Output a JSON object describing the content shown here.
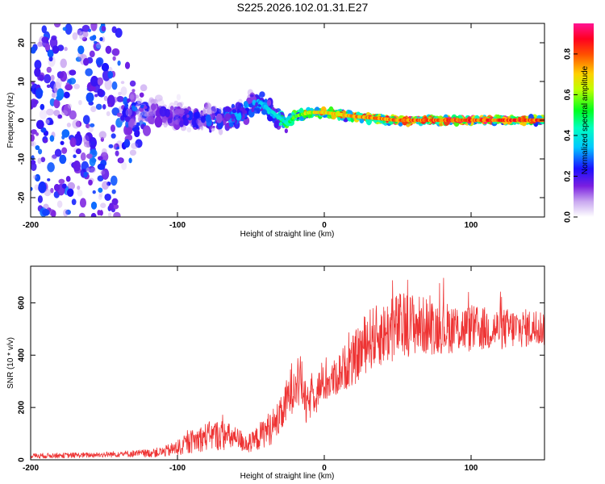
{
  "title": "S225.2026.102.01.31.E27",
  "chart_data": [
    {
      "type": "heatmap",
      "title": "",
      "xlabel": "Height of straight line (km)",
      "ylabel": "Frequency (Hz)",
      "xlim": [
        -200,
        150
      ],
      "ylim": [
        -25,
        25
      ],
      "xticks": [
        -200,
        -100,
        0,
        100
      ],
      "yticks": [
        -20,
        -10,
        0,
        10,
        20
      ],
      "grid": false,
      "colorbar": {
        "label": "Normalized spectral amplitude",
        "range": [
          0,
          0.95
        ],
        "ticks": [
          "0.0",
          "0.2",
          "0.4",
          "0.6",
          "0.8"
        ],
        "colors": [
          "#ffffff",
          "#8a2be2",
          "#0000ff",
          "#00ffff",
          "#00ff00",
          "#ffff00",
          "#ff8000",
          "#ff0000",
          "#ff1493"
        ]
      },
      "frequency_profile": {
        "description_x": [
          -200,
          -140,
          -120,
          -100,
          -80,
          -60,
          -45,
          -35,
          -25,
          -20,
          -10,
          0,
          20,
          50,
          100,
          150
        ],
        "center_hz": [
          0,
          0,
          2,
          1,
          0,
          1,
          5,
          2,
          -1,
          1,
          2,
          2,
          1,
          0,
          0,
          0
        ],
        "spread_hz": [
          25,
          25,
          6,
          5,
          5,
          5,
          4,
          4,
          3,
          2,
          1.5,
          1.5,
          1.2,
          1,
          1,
          1
        ],
        "peak_amplitude": [
          0.15,
          0.15,
          0.15,
          0.2,
          0.25,
          0.3,
          0.35,
          0.4,
          0.5,
          0.6,
          0.7,
          0.75,
          0.8,
          0.85,
          0.9,
          0.9
        ]
      }
    },
    {
      "type": "line",
      "title": "",
      "xlabel": "Height of straight line (km)",
      "ylabel": "SNR (10 * v/v)",
      "xlim": [
        -200,
        150
      ],
      "ylim": [
        0,
        740
      ],
      "xticks": [
        -200,
        -100,
        0,
        100
      ],
      "yticks": [
        0,
        200,
        400,
        600
      ],
      "grid": false,
      "series": [
        {
          "name": "SNR",
          "color": "#ee3333",
          "x": [
            -200,
            -160,
            -140,
            -120,
            -110,
            -100,
            -90,
            -80,
            -70,
            -60,
            -50,
            -45,
            -40,
            -35,
            -30,
            -25,
            -20,
            -15,
            -12,
            -10,
            -5,
            0,
            5,
            10,
            15,
            20,
            25,
            30,
            40,
            50,
            60,
            70,
            80,
            100,
            120,
            150
          ],
          "mean": [
            15,
            18,
            22,
            25,
            30,
            45,
            70,
            90,
            95,
            80,
            60,
            85,
            110,
            130,
            160,
            230,
            310,
            290,
            190,
            230,
            270,
            290,
            300,
            330,
            360,
            380,
            420,
            460,
            480,
            510,
            520,
            510,
            505,
            500,
            500,
            505
          ],
          "noise": [
            10,
            10,
            12,
            15,
            20,
            30,
            45,
            55,
            60,
            45,
            40,
            50,
            60,
            70,
            70,
            90,
            110,
            100,
            70,
            80,
            70,
            70,
            70,
            80,
            90,
            100,
            110,
            120,
            120,
            130,
            120,
            110,
            100,
            90,
            80,
            70
          ]
        }
      ]
    }
  ]
}
